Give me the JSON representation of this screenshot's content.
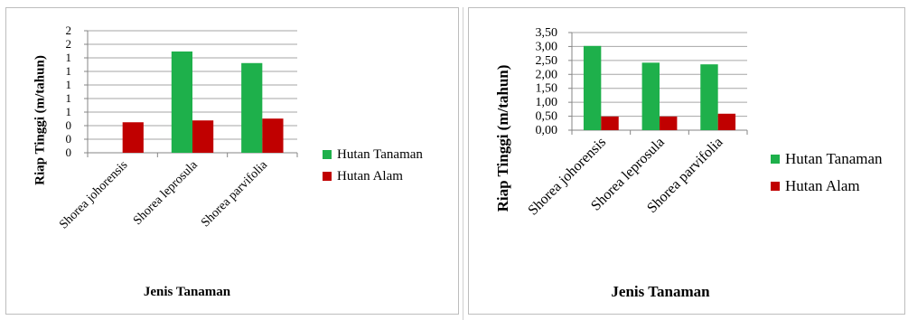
{
  "colors": {
    "series_0": "#1eb04b",
    "series_1": "#c00000",
    "grid": "#a6a6a6",
    "axis": "#868686"
  },
  "chart_data": [
    {
      "type": "bar",
      "categories": [
        "Shorea johorensis",
        "Shorea leprosula",
        "Shorea parvifolia"
      ],
      "series": [
        {
          "name": "Hutan Tanaman",
          "values": [
            0.0,
            1.66,
            1.47
          ]
        },
        {
          "name": "Hutan Alam",
          "values": [
            0.5,
            0.53,
            0.56
          ]
        }
      ],
      "yticks": [
        "0",
        "0",
        "0",
        "1",
        "1",
        "1",
        "1",
        "1",
        "2",
        "2"
      ],
      "ylim": [
        0,
        2.0
      ],
      "ylabel": "Riap Tinggi (m/tahun)",
      "xlabel": "Jenis Tanaman",
      "legend_position": "right",
      "grid": true
    },
    {
      "type": "bar",
      "categories": [
        "Shorea johorensis",
        "Shorea leprosula",
        "Shorea parvifolia"
      ],
      "series": [
        {
          "name": "Hutan Tanaman",
          "values": [
            3.02,
            2.42,
            2.36
          ]
        },
        {
          "name": "Hutan Alam",
          "values": [
            0.49,
            0.49,
            0.59
          ]
        }
      ],
      "yticks": [
        "0,00",
        "0,50",
        "1,00",
        "1,50",
        "2,00",
        "2,50",
        "3,00",
        "3,50"
      ],
      "ylim": [
        0,
        3.5
      ],
      "ylabel": "Riap Tinggi (m/tahun)",
      "xlabel": "Jenis Tanaman",
      "legend_position": "right",
      "grid": true
    }
  ]
}
